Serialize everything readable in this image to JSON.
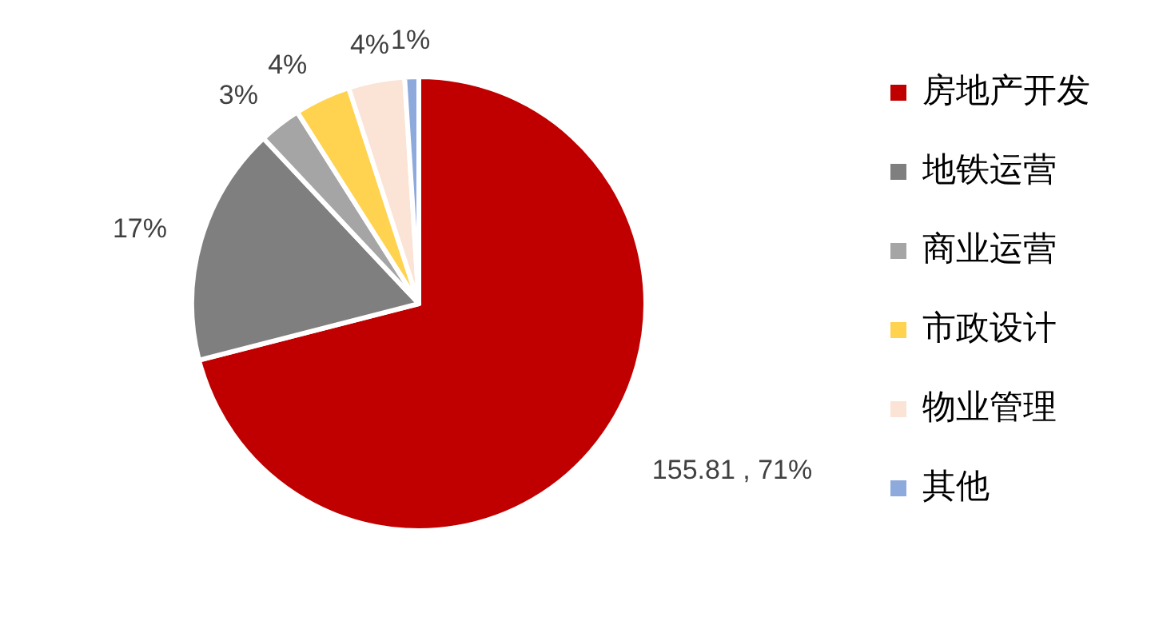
{
  "chart_data": {
    "type": "pie",
    "categories": [
      "房地产开发",
      "地铁运营",
      "商业运营",
      "市政设计",
      "物业管理",
      "其他"
    ],
    "values": [
      71,
      17,
      3,
      4,
      4,
      1
    ],
    "value_labels": [
      "155.81 , 71%",
      "17%",
      "3%",
      "4%",
      "4%",
      "1%"
    ],
    "colors": [
      "#c00000",
      "#7f7f7f",
      "#a5a5a5",
      "#ffd34f",
      "#fbe3d6",
      "#8eaadc"
    ],
    "legend": "right"
  }
}
